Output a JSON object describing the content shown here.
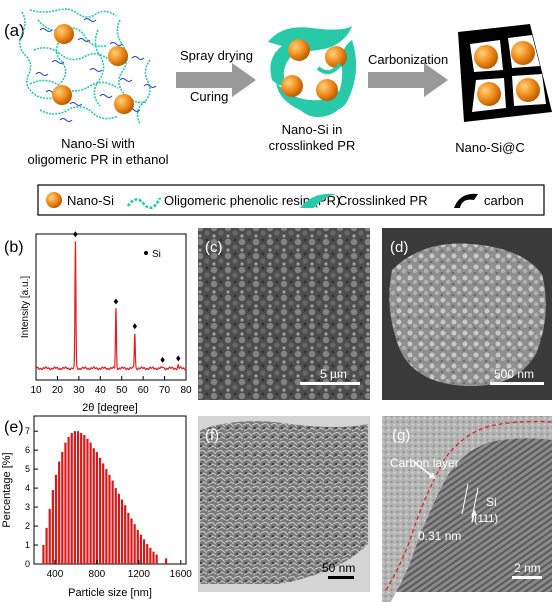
{
  "panel_a": {
    "label": "(a)",
    "step1": "Spray drying",
    "step2": "Curing",
    "step3": "Carbonization",
    "caption1_line1": "Nano-Si with",
    "caption1_line2": "oligomeric PR in ethanol",
    "caption2_line1": "Nano-Si in",
    "caption2_line2": "crosslinked PR",
    "caption3": "Nano-Si@C",
    "legend": [
      "Nano-Si",
      "Oligomeric phenolic resin (PR)",
      "Crosslinked PR",
      "carbon"
    ],
    "colors": {
      "si": "#f08a1c",
      "pr": "#28c9a8",
      "carbon": "#000000",
      "arrow": "#9a9a9a"
    }
  },
  "panel_b": {
    "label": "(b)",
    "legend": "Si",
    "xlabel": "2θ [degree]",
    "ylabel": "Intensity [a.u.]",
    "line_color": "#e02020"
  },
  "panel_c": {
    "label": "(c)",
    "scale": "5 µm"
  },
  "panel_d": {
    "label": "(d)",
    "scale": "500 nm"
  },
  "panel_e": {
    "label": "(e)",
    "xlabel": "Particle size [nm]",
    "ylabel": "Percentage [%]",
    "bar_color": "#d81818"
  },
  "panel_f": {
    "label": "(f)",
    "scale": "50 nm"
  },
  "panel_g": {
    "label": "(g)",
    "carbon_layer": "Carbon layer",
    "si": "Si",
    "plane": "(111)",
    "spacing": "0.31 nm",
    "scale": "2 nm"
  },
  "chart_data": [
    {
      "type": "line",
      "panel": "b",
      "title": "",
      "xlabel": "2θ [degree]",
      "ylabel": "Intensity [a.u.]",
      "xlim": [
        10,
        80
      ],
      "ylim": [
        0,
        1
      ],
      "x_ticks": [
        10,
        20,
        30,
        40,
        50,
        60,
        70,
        80
      ],
      "series": [
        {
          "name": "Si",
          "peaks_x": [
            28.4,
            47.3,
            56.1,
            69.1,
            76.4
          ],
          "peaks_y": [
            0.95,
            0.49,
            0.32,
            0.09,
            0.1
          ],
          "baseline": 0.08
        }
      ]
    },
    {
      "type": "bar",
      "panel": "e",
      "title": "",
      "xlabel": "Particle size [nm]",
      "ylabel": "Percentage [%]",
      "xlim": [
        200,
        1650
      ],
      "ylim": [
        0,
        7.8
      ],
      "x_ticks": [
        400,
        800,
        1200,
        1600
      ],
      "y_ticks": [
        0,
        1,
        2,
        3,
        4,
        5,
        6,
        7
      ],
      "x": [
        290,
        320,
        350,
        380,
        410,
        440,
        470,
        500,
        530,
        560,
        590,
        620,
        650,
        680,
        710,
        740,
        770,
        800,
        830,
        860,
        890,
        920,
        950,
        980,
        1010,
        1040,
        1070,
        1100,
        1130,
        1160,
        1190,
        1220,
        1250,
        1280,
        1310,
        1340,
        1370,
        1460
      ],
      "values": [
        1.0,
        1.9,
        2.9,
        3.9,
        4.7,
        5.4,
        5.9,
        6.4,
        6.7,
        6.9,
        7.0,
        7.0,
        6.9,
        6.8,
        6.6,
        6.4,
        6.1,
        5.9,
        5.6,
        5.3,
        5.0,
        4.7,
        4.4,
        4.0,
        3.7,
        3.4,
        3.1,
        2.7,
        2.4,
        2.1,
        1.8,
        1.55,
        1.3,
        1.05,
        0.85,
        0.65,
        0.5,
        0.3
      ]
    }
  ]
}
